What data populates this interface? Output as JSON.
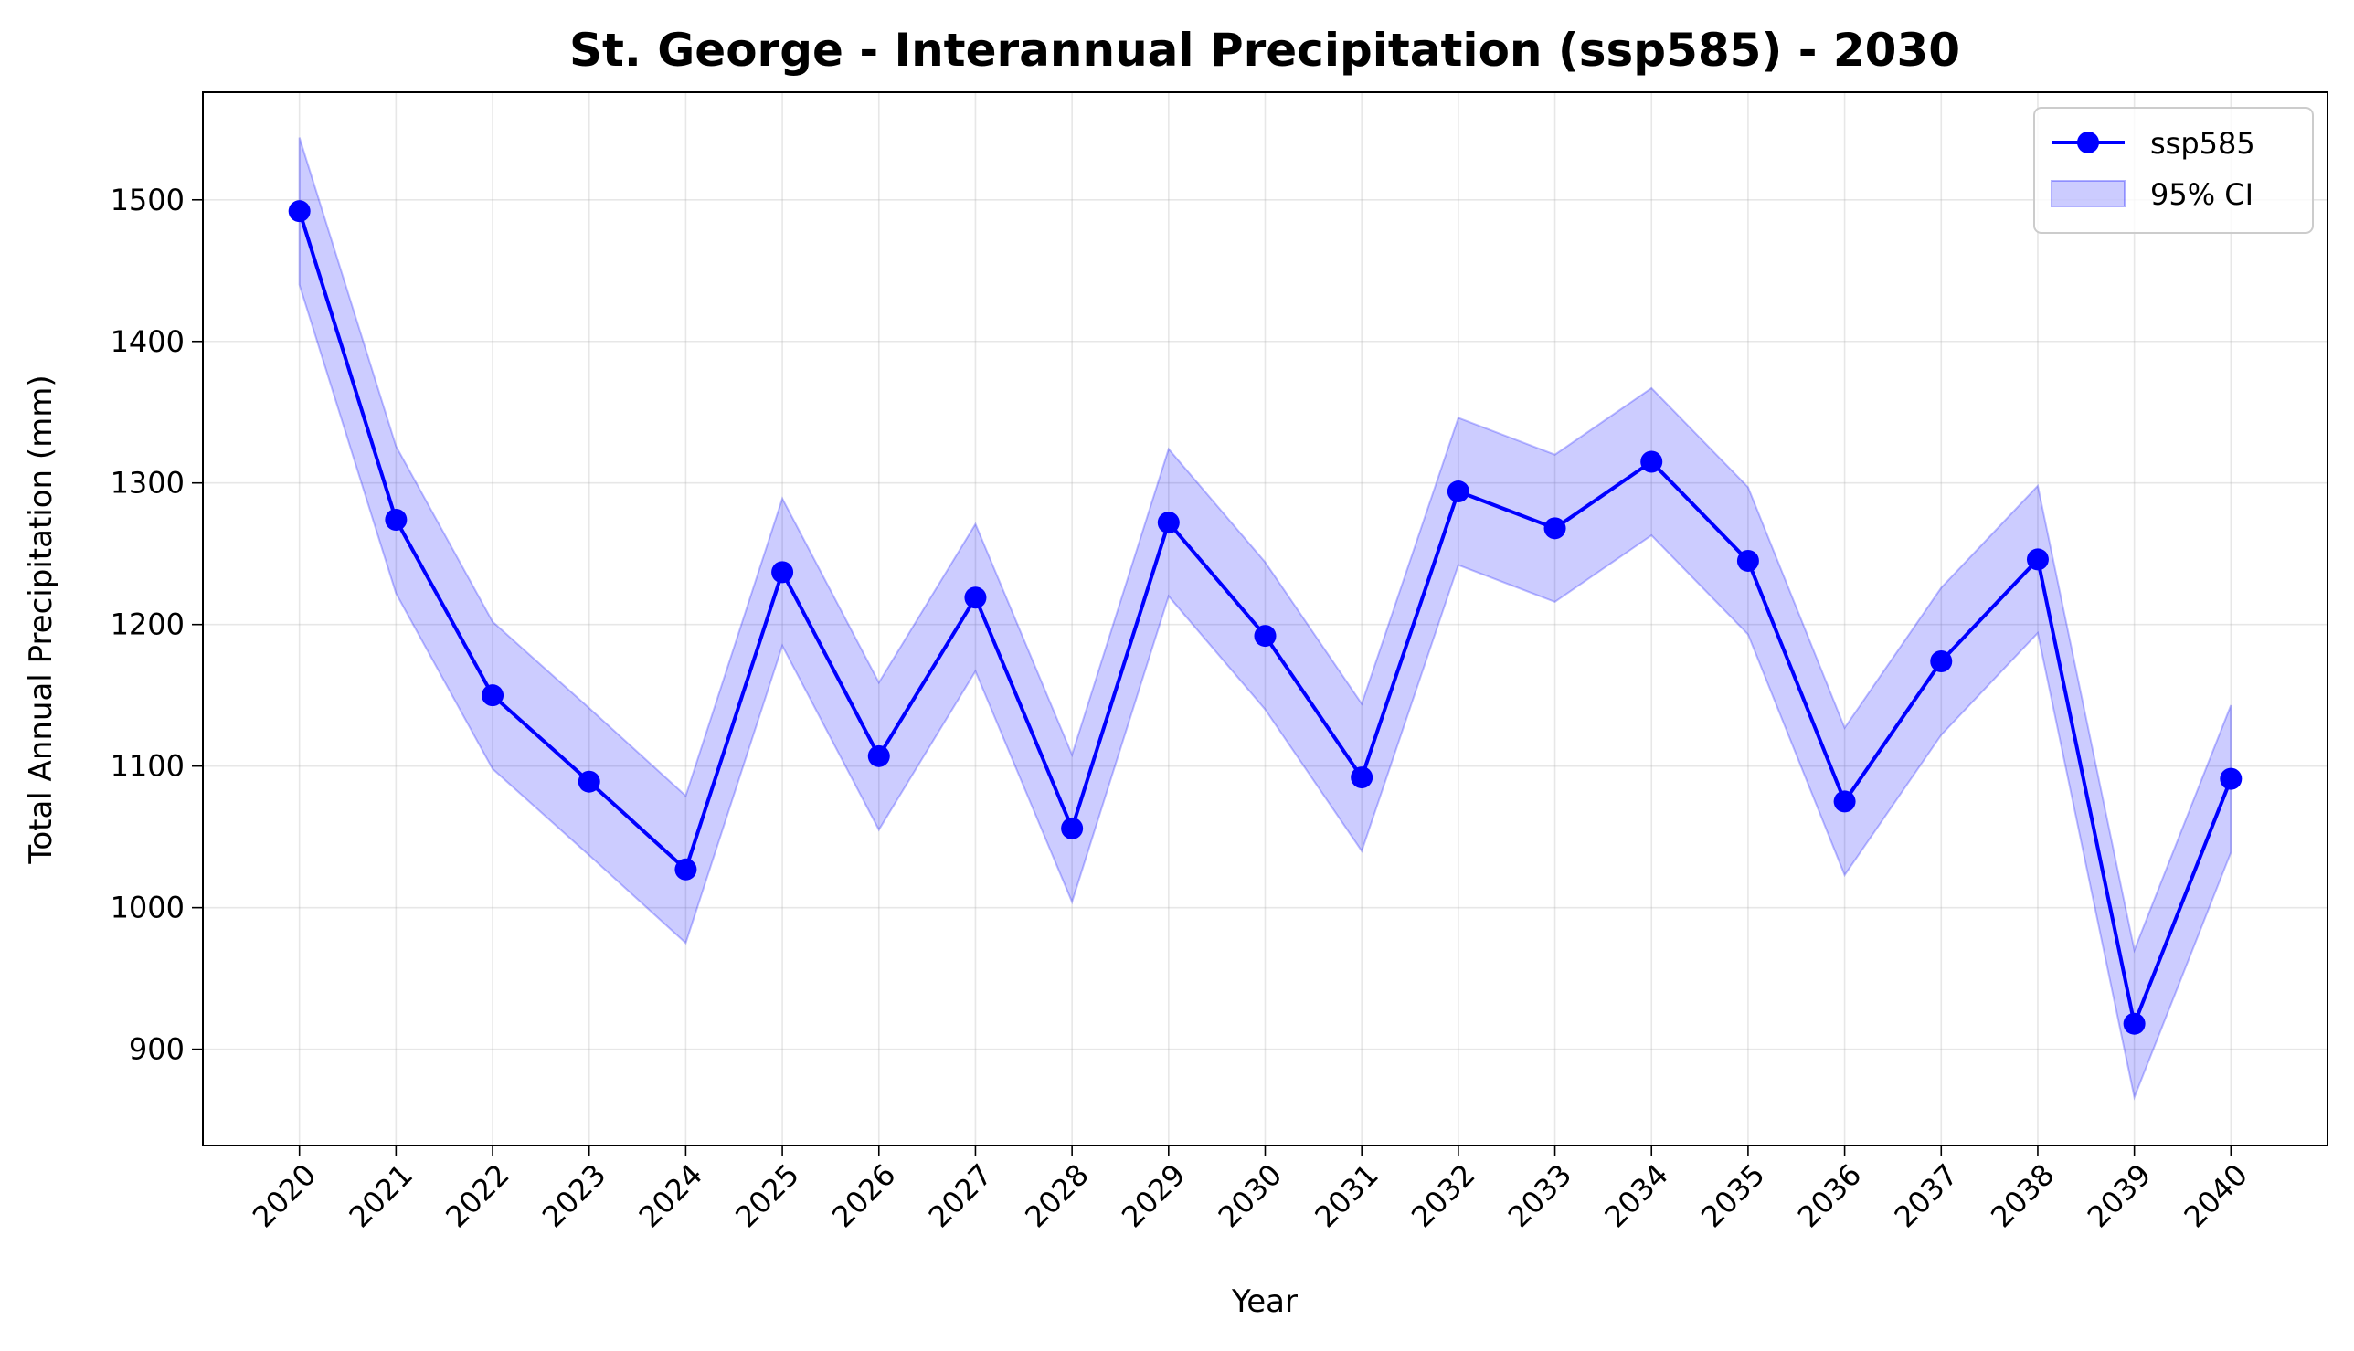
{
  "chart_data": {
    "type": "line",
    "title": "St. George - Interannual Precipitation (ssp585) - 2030",
    "xlabel": "Year",
    "ylabel": "Total Annual Precipitation (mm)",
    "x": [
      2020,
      2021,
      2022,
      2023,
      2024,
      2025,
      2026,
      2027,
      2028,
      2029,
      2030,
      2031,
      2032,
      2033,
      2034,
      2035,
      2036,
      2037,
      2038,
      2039,
      2040
    ],
    "x_tick_labels": [
      "2020",
      "2021",
      "2022",
      "2023",
      "2024",
      "2025",
      "2026",
      "2027",
      "2028",
      "2029",
      "2030",
      "2031",
      "2032",
      "2033",
      "2034",
      "2035",
      "2036",
      "2037",
      "2038",
      "2039",
      "2040"
    ],
    "yticks": [
      900,
      1000,
      1100,
      1200,
      1300,
      1400,
      1500
    ],
    "ytick_labels": [
      "900",
      "1000",
      "1100",
      "1200",
      "1300",
      "1400",
      "1500"
    ],
    "ylim": [
      832,
      1576
    ],
    "xlim": [
      2019,
      2041
    ],
    "grid": true,
    "legend_position": "top-right",
    "series": [
      {
        "name": "ssp585",
        "color": "#0000ff",
        "marker": "circle",
        "values": [
          1492,
          1274,
          1150,
          1089,
          1027,
          1237,
          1107,
          1219,
          1056,
          1272,
          1192,
          1092,
          1294,
          1268,
          1315,
          1245,
          1075,
          1174,
          1246,
          918,
          1091
        ]
      }
    ],
    "band": {
      "name": "95% CI",
      "color": "#0000ff",
      "opacity": 0.2,
      "lower": [
        1440,
        1222,
        1098,
        1037,
        975,
        1185,
        1055,
        1167,
        1004,
        1220,
        1140,
        1040,
        1242,
        1216,
        1263,
        1193,
        1023,
        1122,
        1194,
        866,
        1039
      ],
      "upper": [
        1544,
        1326,
        1202,
        1141,
        1079,
        1289,
        1159,
        1271,
        1108,
        1324,
        1244,
        1144,
        1346,
        1320,
        1367,
        1297,
        1127,
        1226,
        1298,
        970,
        1143
      ]
    }
  }
}
